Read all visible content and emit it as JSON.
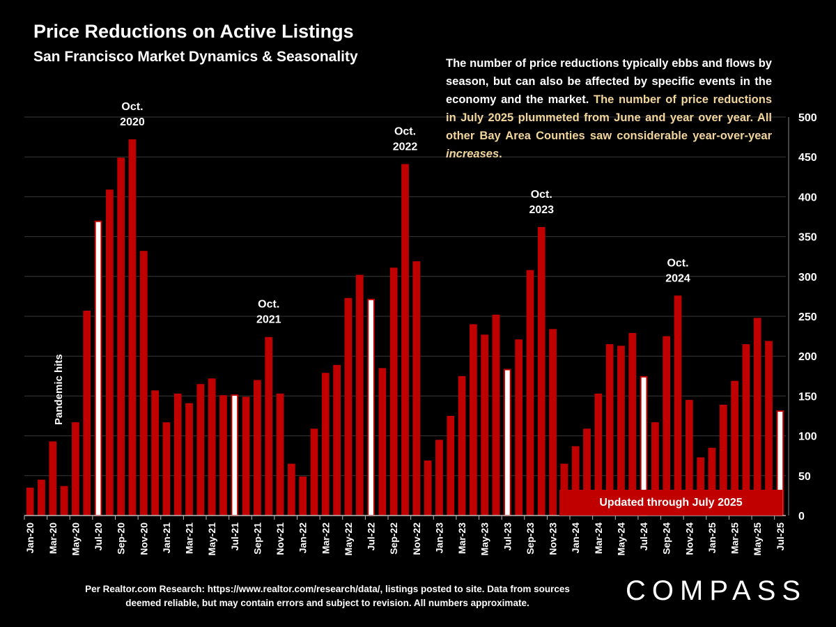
{
  "title": "Price Reductions on Active Listings",
  "subtitle": "San Francisco Market Dynamics & Seasonality",
  "description": {
    "normal": "The number of price reductions typically ebbs and flows by season, but can also be affected by specific events in the economy and the market. ",
    "highlight": "The number of price reductions in July 2025 plummeted from June and year over year. All other Bay Area Counties saw considerable year-over-year ",
    "highlight_em": "increases",
    "highlight_end": "."
  },
  "updated_banner": "Updated through July 2025",
  "pandemic_label": "Pandemic hits",
  "footnote": "Per Realtor.com Research:  https://www.realtor.com/research/data/, listings posted to site. Data from sources deemed reliable, but may contain errors and subject to revision. All numbers approximate.",
  "logo": "COMPASS",
  "colors": {
    "bar": "#c00000",
    "july_bar": "#ffffff",
    "july_border": "#c00000",
    "background": "#000000"
  },
  "chart_data": {
    "type": "bar",
    "ylim": [
      0,
      500
    ],
    "yticks": [
      0,
      50,
      100,
      150,
      200,
      250,
      300,
      350,
      400,
      450,
      500
    ],
    "y_axis_side": "right",
    "grid": true,
    "categories": [
      "Jan-20",
      "Feb-20",
      "Mar-20",
      "Apr-20",
      "May-20",
      "Jun-20",
      "Jul-20",
      "Aug-20",
      "Sep-20",
      "Oct-20",
      "Nov-20",
      "Dec-20",
      "Jan-21",
      "Feb-21",
      "Mar-21",
      "Apr-21",
      "May-21",
      "Jun-21",
      "Jul-21",
      "Aug-21",
      "Sep-21",
      "Oct-21",
      "Nov-21",
      "Dec-21",
      "Jan-22",
      "Feb-22",
      "Mar-22",
      "Apr-22",
      "May-22",
      "Jun-22",
      "Jul-22",
      "Aug-22",
      "Sep-22",
      "Oct-22",
      "Nov-22",
      "Dec-22",
      "Jan-23",
      "Feb-23",
      "Mar-23",
      "Apr-23",
      "May-23",
      "Jun-23",
      "Jul-23",
      "Aug-23",
      "Sep-23",
      "Oct-23",
      "Nov-23",
      "Dec-23",
      "Jan-24",
      "Feb-24",
      "Mar-24",
      "Apr-24",
      "May-24",
      "Jun-24",
      "Jul-24",
      "Aug-24",
      "Sep-24",
      "Oct-24",
      "Nov-24",
      "Dec-24",
      "Jan-25",
      "Feb-25",
      "Mar-25",
      "Apr-25",
      "May-25",
      "Jun-25",
      "Jul-25"
    ],
    "x_tick_labels": [
      "Jan-20",
      "Mar-20",
      "May-20",
      "Jul-20",
      "Sep-20",
      "Nov-20",
      "Jan-21",
      "Mar-21",
      "May-21",
      "Jul-21",
      "Sep-21",
      "Nov-21",
      "Jan-22",
      "Mar-22",
      "May-22",
      "Jul-22",
      "Sep-22",
      "Nov-22",
      "Jan-23",
      "Mar-23",
      "May-23",
      "Jul-23",
      "Sep-23",
      "Nov-23",
      "Jan-24",
      "Mar-24",
      "May-24",
      "Jul-24",
      "Sep-24",
      "Nov-24",
      "Jan-25",
      "Mar-25",
      "May-25",
      "Jul-25"
    ],
    "values": [
      35,
      45,
      93,
      37,
      117,
      257,
      370,
      409,
      449,
      472,
      332,
      157,
      117,
      153,
      141,
      165,
      172,
      151,
      152,
      149,
      170,
      224,
      153,
      65,
      49,
      109,
      179,
      189,
      273,
      302,
      272,
      185,
      311,
      441,
      319,
      69,
      95,
      125,
      175,
      240,
      227,
      252,
      184,
      221,
      308,
      362,
      234,
      65,
      87,
      109,
      153,
      215,
      213,
      229,
      175,
      117,
      225,
      276,
      145,
      73,
      85,
      139,
      169,
      215,
      248,
      219,
      132
    ],
    "highlighted_months": [
      "Jul-20",
      "Jul-21",
      "Jul-22",
      "Jul-23",
      "Jul-24",
      "Jul-25"
    ],
    "annotations": [
      {
        "category": "Oct-20",
        "text": [
          "Oct.",
          "2020"
        ]
      },
      {
        "category": "Oct-21",
        "text": [
          "Oct.",
          "2021"
        ]
      },
      {
        "category": "Oct-22",
        "text": [
          "Oct.",
          "2022"
        ]
      },
      {
        "category": "Oct-23",
        "text": [
          "Oct.",
          "2023"
        ]
      },
      {
        "category": "Oct-24",
        "text": [
          "Oct.",
          "2024"
        ]
      }
    ]
  }
}
